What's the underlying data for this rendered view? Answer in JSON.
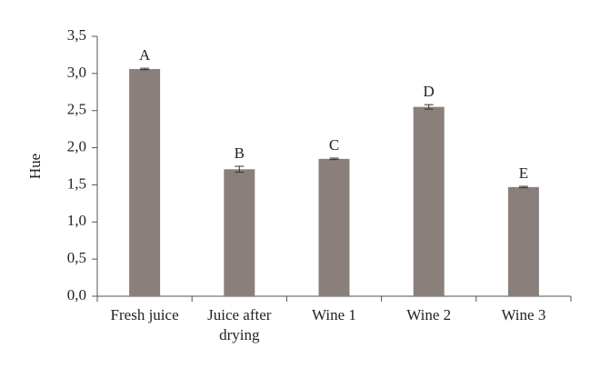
{
  "chart_data": {
    "type": "bar",
    "y_label": "Hue",
    "categories": [
      "Fresh juice",
      "Juice after drying",
      "Wine 1",
      "Wine 2",
      "Wine 3"
    ],
    "values": [
      3.06,
      1.71,
      1.85,
      2.55,
      1.47
    ],
    "errors": [
      0.01,
      0.04,
      0.01,
      0.03,
      0.01
    ],
    "annotations": [
      "A",
      "B",
      "C",
      "D",
      "E"
    ],
    "color": "#8b7f7c",
    "ylim": [
      0,
      3.5
    ],
    "yticks": [
      {
        "value": 0,
        "label": "0,0"
      },
      {
        "value": 0.5,
        "label": "0,5"
      },
      {
        "value": 1,
        "label": "1,0"
      },
      {
        "value": 1.5,
        "label": "1,5"
      },
      {
        "value": 2,
        "label": "2,0"
      },
      {
        "value": 2.5,
        "label": "2,5"
      },
      {
        "value": 3,
        "label": "3,0"
      },
      {
        "value": 3.5,
        "label": "3,5"
      }
    ]
  }
}
